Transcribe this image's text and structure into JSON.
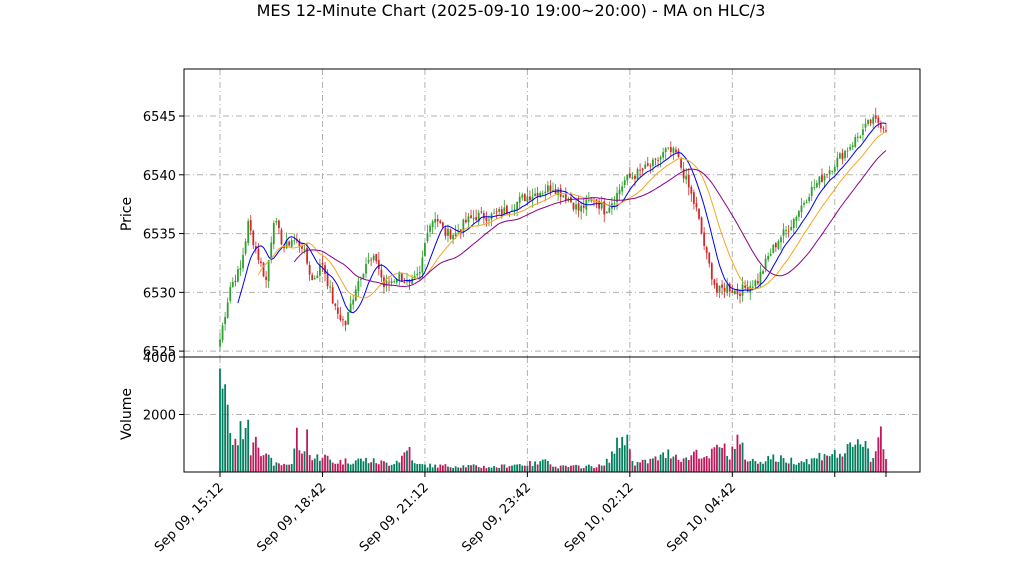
{
  "chart_data": {
    "type": "candlestick",
    "title": "MES 12-Minute Chart (2025-09-10 19:00~20:00) - MA on HLC/3",
    "price_panel": {
      "ylabel": "Price",
      "ylim": [
        6524.5,
        6549.0
      ],
      "yticks": [
        6525,
        6530,
        6535,
        6540,
        6545
      ]
    },
    "volume_panel": {
      "ylabel": "Volume",
      "ylim": [
        0,
        4000
      ],
      "yticks": [
        2000,
        4000
      ]
    },
    "x_tick_labels": [
      "Sep 09, 15:12",
      "Sep 09, 18:42",
      "Sep 09, 21:12",
      "Sep 09, 23:42",
      "Sep 10, 02:12",
      "Sep 10, 04:42"
    ],
    "grid": true,
    "up_color": "#2ca02c",
    "down_color": "#d62728",
    "volume_up_color": "#007f5f",
    "volume_down_color": "#c2185b",
    "ma_colors": [
      "#0000ee",
      "#f5a623",
      "#8b008b"
    ],
    "close_anchors": [
      [
        0,
        6526.0
      ],
      [
        4,
        6530.5
      ],
      [
        8,
        6532.0
      ],
      [
        11,
        6535.8
      ],
      [
        15,
        6533.0
      ],
      [
        18,
        6531.0
      ],
      [
        21,
        6536.3
      ],
      [
        25,
        6533.8
      ],
      [
        28,
        6534.5
      ],
      [
        32,
        6534.0
      ],
      [
        36,
        6531.0
      ],
      [
        40,
        6532.5
      ],
      [
        45,
        6528.5
      ],
      [
        49,
        6527.3
      ],
      [
        53,
        6530.5
      ],
      [
        57,
        6532.5
      ],
      [
        61,
        6532.8
      ],
      [
        64,
        6530.5
      ],
      [
        70,
        6531.5
      ],
      [
        74,
        6530.5
      ],
      [
        78,
        6531.5
      ],
      [
        81,
        6535.5
      ],
      [
        84,
        6536.5
      ],
      [
        88,
        6535.0
      ],
      [
        92,
        6535.0
      ],
      [
        96,
        6536.0
      ],
      [
        100,
        6536.5
      ],
      [
        106,
        6536.5
      ],
      [
        112,
        6537.0
      ],
      [
        118,
        6538.0
      ],
      [
        124,
        6538.5
      ],
      [
        130,
        6539.0
      ],
      [
        136,
        6538.0
      ],
      [
        140,
        6537.0
      ],
      [
        146,
        6538.0
      ],
      [
        150,
        6537.0
      ],
      [
        154,
        6538.0
      ],
      [
        158,
        6539.5
      ],
      [
        162,
        6540.0
      ],
      [
        166,
        6540.5
      ],
      [
        170,
        6541.0
      ],
      [
        174,
        6542.0
      ],
      [
        178,
        6541.8
      ],
      [
        182,
        6539.5
      ],
      [
        186,
        6537.0
      ],
      [
        190,
        6533.0
      ],
      [
        194,
        6530.0
      ],
      [
        198,
        6530.5
      ],
      [
        202,
        6530.0
      ],
      [
        206,
        6530.5
      ],
      [
        210,
        6531.0
      ],
      [
        214,
        6533.0
      ],
      [
        218,
        6534.5
      ],
      [
        222,
        6535.5
      ],
      [
        226,
        6537.0
      ],
      [
        230,
        6538.5
      ],
      [
        234,
        6539.5
      ],
      [
        238,
        6540.5
      ],
      [
        242,
        6541.5
      ],
      [
        246,
        6542.5
      ],
      [
        250,
        6543.5
      ],
      [
        254,
        6544.5
      ],
      [
        257,
        6544.5
      ],
      [
        260,
        6544.0
      ]
    ],
    "volume_anchors": [
      [
        0,
        3600
      ],
      [
        2,
        3000
      ],
      [
        5,
        1200
      ],
      [
        8,
        1600
      ],
      [
        10,
        2200
      ],
      [
        12,
        1000
      ],
      [
        14,
        1800
      ],
      [
        16,
        1000
      ],
      [
        18,
        600
      ],
      [
        22,
        300
      ],
      [
        28,
        350
      ],
      [
        30,
        1550
      ],
      [
        32,
        600
      ],
      [
        34,
        1500
      ],
      [
        36,
        500
      ],
      [
        40,
        700
      ],
      [
        44,
        400
      ],
      [
        50,
        450
      ],
      [
        56,
        500
      ],
      [
        62,
        400
      ],
      [
        66,
        350
      ],
      [
        70,
        500
      ],
      [
        74,
        1000
      ],
      [
        76,
        300
      ],
      [
        84,
        250
      ],
      [
        95,
        250
      ],
      [
        108,
        200
      ],
      [
        114,
        300
      ],
      [
        125,
        350
      ],
      [
        127,
        800
      ],
      [
        130,
        200
      ],
      [
        150,
        250
      ],
      [
        158,
        1550
      ],
      [
        162,
        350
      ],
      [
        166,
        400
      ],
      [
        172,
        600
      ],
      [
        176,
        800
      ],
      [
        182,
        500
      ],
      [
        186,
        900
      ],
      [
        190,
        500
      ],
      [
        196,
        1200
      ],
      [
        198,
        600
      ],
      [
        202,
        1300
      ],
      [
        206,
        500
      ],
      [
        210,
        400
      ],
      [
        214,
        600
      ],
      [
        220,
        500
      ],
      [
        226,
        450
      ],
      [
        232,
        500
      ],
      [
        236,
        800
      ],
      [
        240,
        700
      ],
      [
        244,
        800
      ],
      [
        248,
        1000
      ],
      [
        252,
        1400
      ],
      [
        254,
        500
      ],
      [
        256,
        800
      ],
      [
        258,
        2050
      ],
      [
        259,
        1100
      ],
      [
        260,
        500
      ]
    ],
    "bar_count": 261
  }
}
